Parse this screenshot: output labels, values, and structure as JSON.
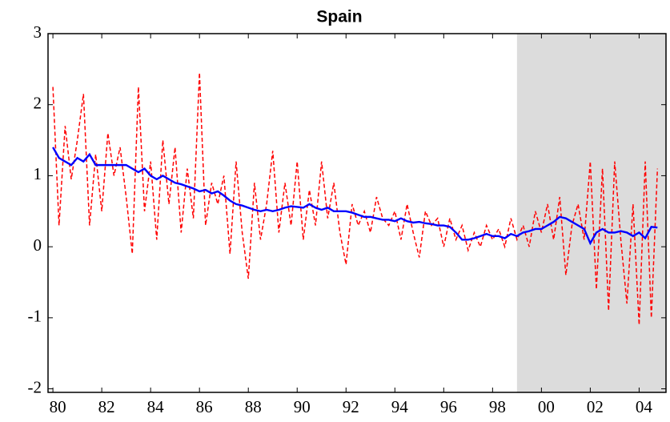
{
  "chart_data": {
    "type": "line",
    "title": "Spain",
    "x": [
      1980,
      1980.25,
      1980.5,
      1980.75,
      1981,
      1981.25,
      1981.5,
      1981.75,
      1982,
      1982.25,
      1982.5,
      1982.75,
      1983,
      1983.25,
      1983.5,
      1983.75,
      1984,
      1984.25,
      1984.5,
      1984.75,
      1985,
      1985.25,
      1985.5,
      1985.75,
      1986,
      1986.25,
      1986.5,
      1986.75,
      1987,
      1987.25,
      1987.5,
      1987.75,
      1988,
      1988.25,
      1988.5,
      1988.75,
      1989,
      1989.25,
      1989.5,
      1989.75,
      1990,
      1990.25,
      1990.5,
      1990.75,
      1991,
      1991.25,
      1991.5,
      1991.75,
      1992,
      1992.25,
      1992.5,
      1992.75,
      1993,
      1993.25,
      1993.5,
      1993.75,
      1994,
      1994.25,
      1994.5,
      1994.75,
      1995,
      1995.25,
      1995.5,
      1995.75,
      1996,
      1996.25,
      1996.5,
      1996.75,
      1997,
      1997.25,
      1997.5,
      1997.75,
      1998,
      1998.25,
      1998.5,
      1998.75,
      1999,
      1999.25,
      1999.5,
      1999.75,
      2000,
      2000.25,
      2000.5,
      2000.75,
      2001,
      2001.25,
      2001.5,
      2001.75,
      2002,
      2002.25,
      2002.5,
      2002.75,
      2003,
      2003.25,
      2003.5,
      2003.75,
      2004,
      2004.25,
      2004.5,
      2004.75
    ],
    "series": [
      {
        "color": "#ff0000",
        "dash": true,
        "values": [
          2.25,
          0.3,
          1.7,
          0.95,
          1.5,
          2.15,
          0.3,
          1.3,
          0.5,
          1.6,
          1.0,
          1.4,
          0.7,
          -0.1,
          2.25,
          0.5,
          1.2,
          0.1,
          1.5,
          0.6,
          1.4,
          0.2,
          1.1,
          0.4,
          2.45,
          0.3,
          0.9,
          0.6,
          1.0,
          -0.1,
          1.2,
          0.2,
          -0.45,
          0.9,
          0.1,
          0.6,
          1.35,
          0.2,
          0.9,
          0.3,
          1.2,
          0.1,
          0.8,
          0.3,
          1.2,
          0.4,
          0.9,
          0.2,
          -0.25,
          0.6,
          0.3,
          0.5,
          0.2,
          0.7,
          0.4,
          0.3,
          0.5,
          0.1,
          0.6,
          0.2,
          -0.15,
          0.5,
          0.3,
          0.4,
          0.0,
          0.4,
          0.1,
          0.3,
          -0.05,
          0.2,
          0.0,
          0.3,
          0.1,
          0.25,
          0.0,
          0.4,
          0.1,
          0.3,
          0.0,
          0.5,
          0.2,
          0.6,
          0.1,
          0.7,
          -0.4,
          0.3,
          0.6,
          0.1,
          1.2,
          -0.6,
          1.1,
          -0.9,
          1.2,
          0.1,
          -0.8,
          0.6,
          -1.1,
          1.2,
          -1.0,
          1.1
        ]
      },
      {
        "color": "#0000ff",
        "dash": false,
        "values": [
          1.4,
          1.25,
          1.2,
          1.15,
          1.25,
          1.2,
          1.3,
          1.15,
          1.15,
          1.15,
          1.15,
          1.15,
          1.15,
          1.1,
          1.05,
          1.1,
          1.0,
          0.95,
          1.0,
          0.95,
          0.9,
          0.88,
          0.85,
          0.82,
          0.78,
          0.8,
          0.75,
          0.78,
          0.72,
          0.65,
          0.6,
          0.58,
          0.55,
          0.52,
          0.5,
          0.52,
          0.5,
          0.52,
          0.55,
          0.57,
          0.56,
          0.55,
          0.6,
          0.55,
          0.52,
          0.55,
          0.5,
          0.5,
          0.5,
          0.48,
          0.45,
          0.42,
          0.42,
          0.4,
          0.38,
          0.38,
          0.36,
          0.4,
          0.36,
          0.34,
          0.35,
          0.33,
          0.32,
          0.3,
          0.3,
          0.28,
          0.2,
          0.1,
          0.1,
          0.12,
          0.15,
          0.18,
          0.15,
          0.15,
          0.12,
          0.18,
          0.15,
          0.2,
          0.22,
          0.25,
          0.25,
          0.3,
          0.35,
          0.42,
          0.4,
          0.35,
          0.3,
          0.25,
          0.05,
          0.2,
          0.25,
          0.2,
          0.2,
          0.22,
          0.2,
          0.15,
          0.2,
          0.12,
          0.28,
          0.27
        ]
      }
    ],
    "xlim": [
      1979.8,
      2005.1
    ],
    "xticks": [
      {
        "value": 1980,
        "label": "80"
      },
      {
        "value": 1982,
        "label": "82"
      },
      {
        "value": 1984,
        "label": "84"
      },
      {
        "value": 1986,
        "label": "86"
      },
      {
        "value": 1988,
        "label": "88"
      },
      {
        "value": 1990,
        "label": "90"
      },
      {
        "value": 1992,
        "label": "92"
      },
      {
        "value": 1994,
        "label": "94"
      },
      {
        "value": 1996,
        "label": "96"
      },
      {
        "value": 1998,
        "label": "98"
      },
      {
        "value": 2000,
        "label": "00"
      },
      {
        "value": 2002,
        "label": "02"
      },
      {
        "value": 2004,
        "label": "04"
      }
    ],
    "ylim": [
      -2.05,
      3
    ],
    "yticks": [
      -2,
      -1,
      0,
      1,
      2,
      3
    ],
    "shaded_region": {
      "from": 1999,
      "to": 2005.1,
      "color": "#dcdcdc"
    }
  }
}
